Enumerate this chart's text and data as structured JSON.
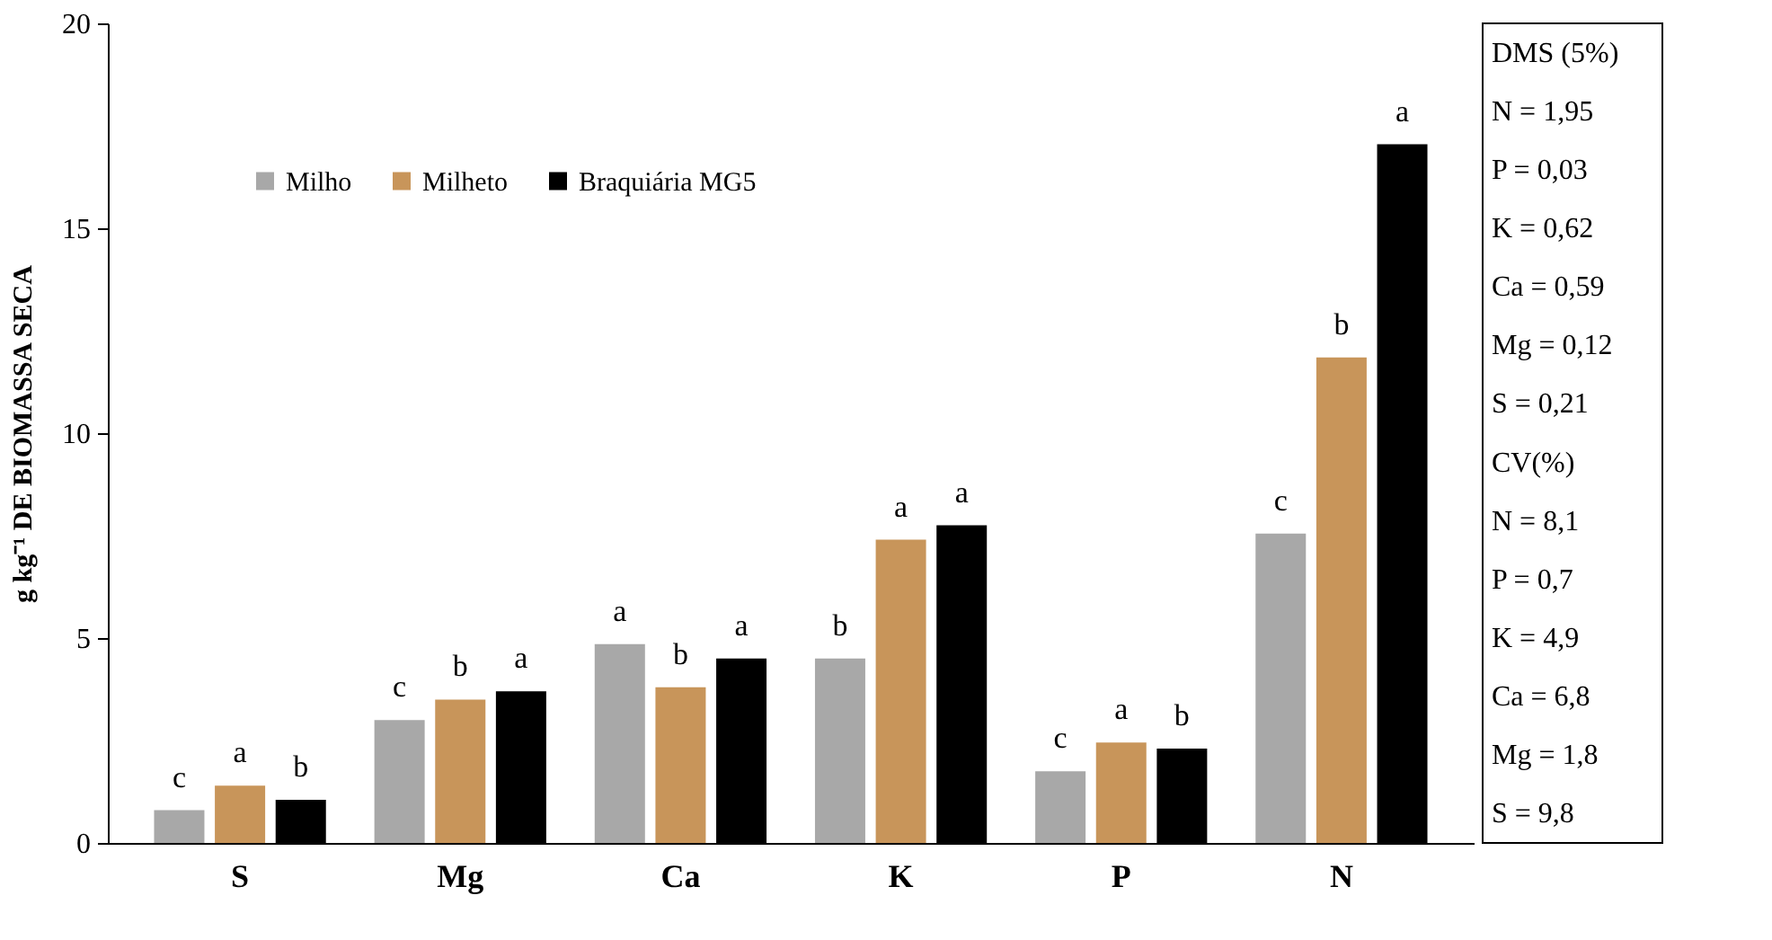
{
  "chart_data": {
    "type": "bar",
    "ylabel": "g kg⁻¹ DE BIOMASSA SECA",
    "categories": [
      "S",
      "Mg",
      "Ca",
      "K",
      "P",
      "N"
    ],
    "series": [
      {
        "name": "Milho",
        "color": "#a8a8a8",
        "values": [
          0.8,
          3.0,
          4.85,
          4.5,
          1.75,
          7.55
        ],
        "value_labels": [
          "c",
          "c",
          "a",
          "b",
          "c",
          "c"
        ]
      },
      {
        "name": "Milheto",
        "color": "#c8955a",
        "values": [
          1.4,
          3.5,
          3.8,
          7.4,
          2.45,
          11.85
        ],
        "value_labels": [
          "a",
          "b",
          "b",
          "a",
          "a",
          "b"
        ]
      },
      {
        "name": "Braquiária MG5",
        "color": "#000000",
        "values": [
          1.05,
          3.7,
          4.5,
          7.75,
          2.3,
          17.05
        ],
        "value_labels": [
          "b",
          "a",
          "a",
          "a",
          "b",
          "a"
        ]
      }
    ],
    "ylim": [
      0,
      20
    ],
    "yticks": [
      0,
      5,
      10,
      15,
      20
    ],
    "grid": false,
    "legend": "top left",
    "annotations": [
      "DMS (5%)",
      "N = 1,95",
      "P = 0,03",
      "K = 0,62",
      "Ca = 0,59",
      "Mg = 0,12",
      "S = 0,21",
      "CV(%)",
      "N = 8,1",
      "P = 0,7",
      "K = 4,9",
      "Ca = 6,8",
      "Mg = 1,8",
      "S = 9,8"
    ]
  }
}
